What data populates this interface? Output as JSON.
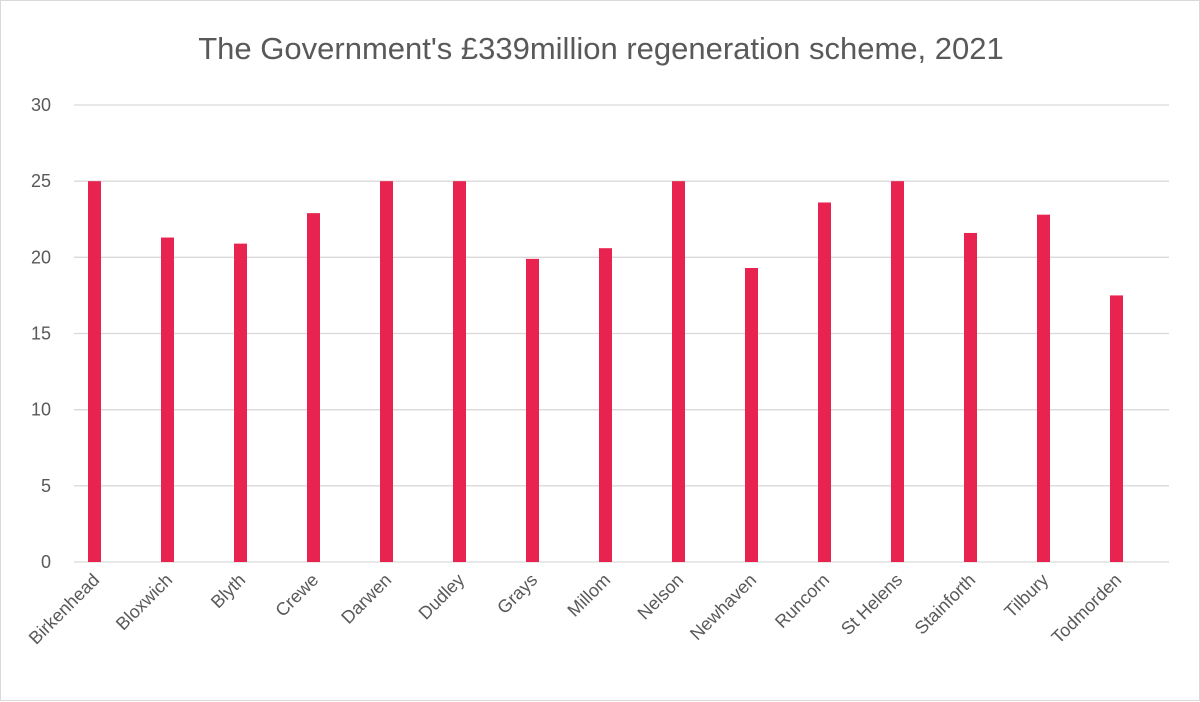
{
  "chart_data": {
    "type": "bar",
    "title": "The Government's £339million regeneration scheme, 2021",
    "xlabel": "",
    "ylabel": "",
    "categories": [
      "Birkenhead",
      "Bloxwich",
      "Blyth",
      "Crewe",
      "Darwen",
      "Dudley",
      "Grays",
      "Millom",
      "Nelson",
      "Newhaven",
      "Runcorn",
      "St Helens",
      "Stainforth",
      "Tilbury",
      "Todmorden"
    ],
    "values": [
      25,
      21.3,
      20.9,
      22.9,
      25,
      25,
      19.9,
      20.6,
      25,
      19.3,
      23.6,
      25,
      21.6,
      22.8,
      17.5
    ],
    "ylim": [
      0,
      30
    ],
    "yticks": [
      0,
      5,
      10,
      15,
      20,
      25,
      30
    ],
    "grid": true,
    "legend": "none",
    "bar_color": "#E8234F",
    "grid_color": "#D9D9D9"
  }
}
